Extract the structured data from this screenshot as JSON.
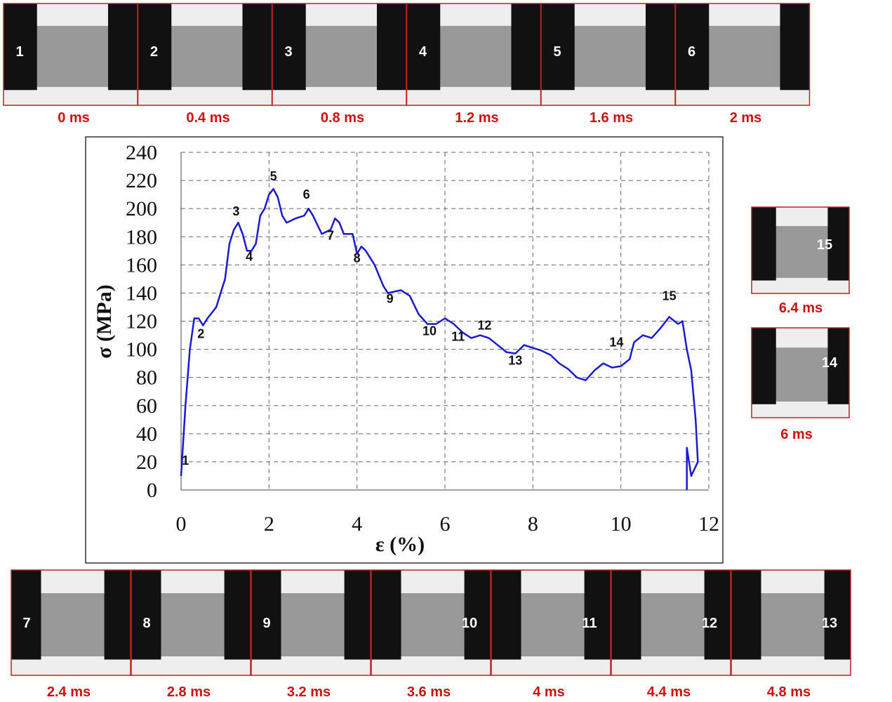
{
  "chart_data": {
    "type": "line",
    "xlabel": "ε (%)",
    "ylabel": "σ (MPa)",
    "xlim": [
      0,
      12
    ],
    "ylim": [
      0,
      240
    ],
    "xticks": [
      0,
      2,
      4,
      6,
      8,
      10,
      12
    ],
    "yticks": [
      0,
      20,
      40,
      60,
      80,
      100,
      120,
      140,
      160,
      180,
      200,
      220,
      240
    ],
    "grid": true,
    "x": [
      0,
      0.1,
      0.2,
      0.3,
      0.4,
      0.5,
      0.6,
      0.8,
      1.0,
      1.1,
      1.2,
      1.3,
      1.4,
      1.5,
      1.6,
      1.7,
      1.8,
      1.9,
      2.0,
      2.1,
      2.2,
      2.3,
      2.4,
      2.6,
      2.8,
      2.9,
      3.0,
      3.2,
      3.4,
      3.5,
      3.6,
      3.7,
      3.9,
      4.0,
      4.1,
      4.2,
      4.4,
      4.6,
      4.7,
      5.0,
      5.2,
      5.4,
      5.6,
      5.8,
      6.0,
      6.2,
      6.4,
      6.6,
      6.8,
      7.0,
      7.2,
      7.4,
      7.6,
      7.8,
      8.0,
      8.2,
      8.4,
      8.6,
      8.8,
      9.0,
      9.2,
      9.4,
      9.6,
      9.8,
      10.0,
      10.2,
      10.3,
      10.5,
      10.7,
      10.9,
      11.1,
      11.3,
      11.4,
      11.5,
      11.6,
      11.7,
      11.75,
      11.6,
      11.5,
      11.5
    ],
    "series": [
      {
        "color": "#1a1ad0",
        "values": [
          10,
          60,
          100,
          122,
          122,
          117,
          122,
          130,
          150,
          175,
          185,
          190,
          182,
          170,
          170,
          175,
          195,
          200,
          210,
          214,
          208,
          195,
          190,
          193,
          195,
          200,
          195,
          182,
          185,
          193,
          190,
          182,
          182,
          168,
          173,
          170,
          160,
          145,
          140,
          142,
          138,
          125,
          118,
          118,
          122,
          118,
          112,
          108,
          110,
          108,
          103,
          98,
          97,
          103,
          101,
          99,
          96,
          90,
          86,
          80,
          78,
          85,
          90,
          87,
          88,
          93,
          105,
          110,
          108,
          115,
          123,
          118,
          120,
          100,
          85,
          50,
          20,
          10,
          30,
          0
        ]
      }
    ],
    "annotations": [
      {
        "text": "1",
        "x": 0.1,
        "y": 18
      },
      {
        "text": "2",
        "x": 0.45,
        "y": 108
      },
      {
        "text": "3",
        "x": 1.25,
        "y": 195
      },
      {
        "text": "4",
        "x": 1.55,
        "y": 163
      },
      {
        "text": "5",
        "x": 2.1,
        "y": 220
      },
      {
        "text": "6",
        "x": 2.85,
        "y": 207
      },
      {
        "text": "7",
        "x": 3.4,
        "y": 178
      },
      {
        "text": "8",
        "x": 4.0,
        "y": 162
      },
      {
        "text": "9",
        "x": 4.75,
        "y": 133
      },
      {
        "text": "10",
        "x": 5.65,
        "y": 110
      },
      {
        "text": "11",
        "x": 6.3,
        "y": 106
      },
      {
        "text": "12",
        "x": 6.9,
        "y": 114
      },
      {
        "text": "13",
        "x": 7.6,
        "y": 89
      },
      {
        "text": "14",
        "x": 9.9,
        "y": 102
      },
      {
        "text": "15",
        "x": 11.1,
        "y": 135
      }
    ]
  },
  "frames": [
    {
      "number": "1",
      "time": "0 ms"
    },
    {
      "number": "2",
      "time": "0.4 ms"
    },
    {
      "number": "3",
      "time": "0.8 ms"
    },
    {
      "number": "4",
      "time": "1.2 ms"
    },
    {
      "number": "5",
      "time": "1.6 ms"
    },
    {
      "number": "6",
      "time": "2 ms"
    },
    {
      "number": "7",
      "time": "2.4 ms"
    },
    {
      "number": "8",
      "time": "2.8 ms"
    },
    {
      "number": "9",
      "time": "3.2 ms"
    },
    {
      "number": "10",
      "time": "3.6 ms"
    },
    {
      "number": "11",
      "time": "4 ms"
    },
    {
      "number": "12",
      "time": "4.4 ms"
    },
    {
      "number": "13",
      "time": "4.8 ms"
    },
    {
      "number": "14",
      "time": "6 ms"
    },
    {
      "number": "15",
      "time": "6.4 ms"
    }
  ]
}
